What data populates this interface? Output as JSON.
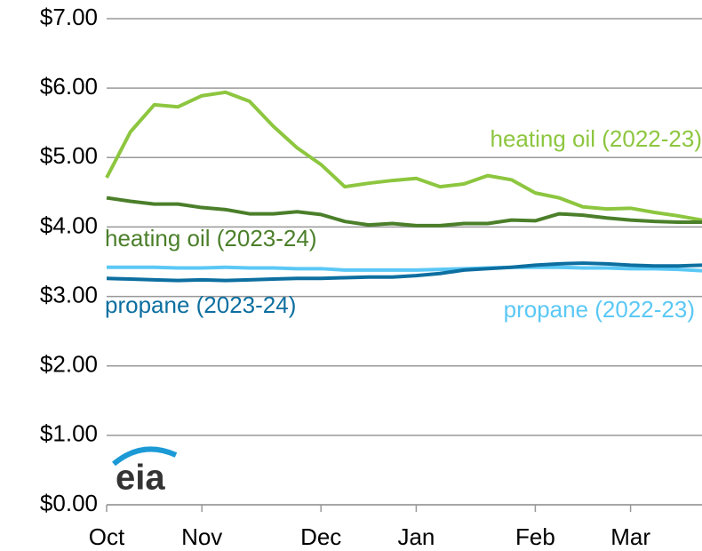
{
  "chart_data": {
    "type": "line",
    "categories": [
      "Oct",
      null,
      null,
      null,
      "Nov",
      null,
      null,
      null,
      null,
      "Dec",
      null,
      null,
      null,
      "Jan",
      null,
      null,
      null,
      null,
      "Feb",
      null,
      null,
      null,
      "Mar",
      null,
      null,
      null
    ],
    "series": [
      {
        "name": "heating oil (2022-23)",
        "color": "#8dc63f",
        "values": [
          4.71,
          5.37,
          5.76,
          5.73,
          5.89,
          5.94,
          5.81,
          5.45,
          5.14,
          4.9,
          4.58,
          4.63,
          4.67,
          4.7,
          4.58,
          4.62,
          4.74,
          4.68,
          4.49,
          4.42,
          4.29,
          4.26,
          4.27,
          4.21,
          4.16,
          4.1
        ]
      },
      {
        "name": "heating oil (2023-24)",
        "color": "#4b7f2a",
        "values": [
          4.42,
          4.37,
          4.33,
          4.33,
          4.28,
          4.25,
          4.19,
          4.19,
          4.22,
          4.18,
          4.08,
          4.03,
          4.05,
          4.02,
          4.02,
          4.05,
          4.05,
          4.1,
          4.09,
          4.19,
          4.17,
          4.13,
          4.1,
          4.08,
          4.07,
          4.07
        ]
      },
      {
        "name": "propane (2022-23)",
        "color": "#5bc8f5",
        "values": [
          3.42,
          3.42,
          3.42,
          3.41,
          3.41,
          3.42,
          3.41,
          3.41,
          3.4,
          3.4,
          3.38,
          3.38,
          3.38,
          3.38,
          3.39,
          3.4,
          3.41,
          3.42,
          3.42,
          3.42,
          3.41,
          3.41,
          3.4,
          3.4,
          3.39,
          3.37
        ]
      },
      {
        "name": "propane (2023-24)",
        "color": "#0d6fa0",
        "values": [
          3.26,
          3.25,
          3.24,
          3.23,
          3.24,
          3.23,
          3.24,
          3.25,
          3.26,
          3.26,
          3.27,
          3.28,
          3.28,
          3.3,
          3.33,
          3.38,
          3.4,
          3.42,
          3.45,
          3.47,
          3.48,
          3.47,
          3.45,
          3.44,
          3.44,
          3.45
        ]
      }
    ],
    "ylim": [
      0,
      7
    ],
    "yticks": [
      {
        "value": 0,
        "label": "$0.00"
      },
      {
        "value": 1,
        "label": "$1.00"
      },
      {
        "value": 2,
        "label": "$2.00"
      },
      {
        "value": 3,
        "label": "$3.00"
      },
      {
        "value": 4,
        "label": "$4.00"
      },
      {
        "value": 5,
        "label": "$5.00"
      },
      {
        "value": 6,
        "label": "$6.00"
      },
      {
        "value": 7,
        "label": "$7.00"
      }
    ],
    "grid": true,
    "logo": "eia"
  }
}
